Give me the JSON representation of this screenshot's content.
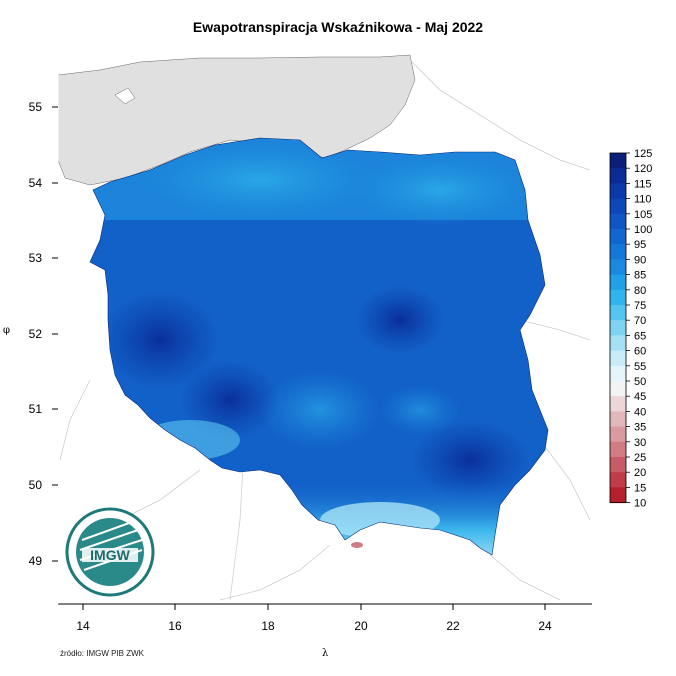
{
  "map": {
    "title": "Ewapotranspiracja Wskaźnikowa - Maj 2022",
    "x_axis_label": "λ",
    "y_axis_label": "φ",
    "x_ticks": [
      "14",
      "16",
      "18",
      "20",
      "22",
      "24"
    ],
    "y_ticks": [
      "55",
      "54",
      "53",
      "52",
      "51",
      "50",
      "49"
    ],
    "source": "źródło: IMGW PIB ZWK",
    "logo_text": "IMGW"
  },
  "legend": {
    "values": [
      "125",
      "120",
      "115",
      "110",
      "105",
      "100",
      "95",
      "90",
      "85",
      "80",
      "75",
      "70",
      "65",
      "60",
      "55",
      "50",
      "45",
      "40",
      "35",
      "30",
      "25",
      "20",
      "15",
      "10"
    ],
    "colors": [
      "#0a1f7a",
      "#0b2c94",
      "#0c39a8",
      "#0d47b8",
      "#0f56c4",
      "#1166cf",
      "#1577d8",
      "#1a89e0",
      "#22a0e6",
      "#2fb4eb",
      "#55c4ef",
      "#7fd3f2",
      "#a6e0f5",
      "#c8ecf8",
      "#e3f4fb",
      "#f3f3f3",
      "#ecd6d8",
      "#e2b8bc",
      "#d99aa0",
      "#d17b83",
      "#c85c66",
      "#bf3c48",
      "#b5202c",
      "#aa0a16"
    ]
  },
  "colors": {
    "sea_land": "#e0e0e0",
    "map_base": "#1261c9",
    "map_dark": "#0b3aa6",
    "map_light": "#2096dd",
    "mountain_light": "#8fd8f2"
  }
}
